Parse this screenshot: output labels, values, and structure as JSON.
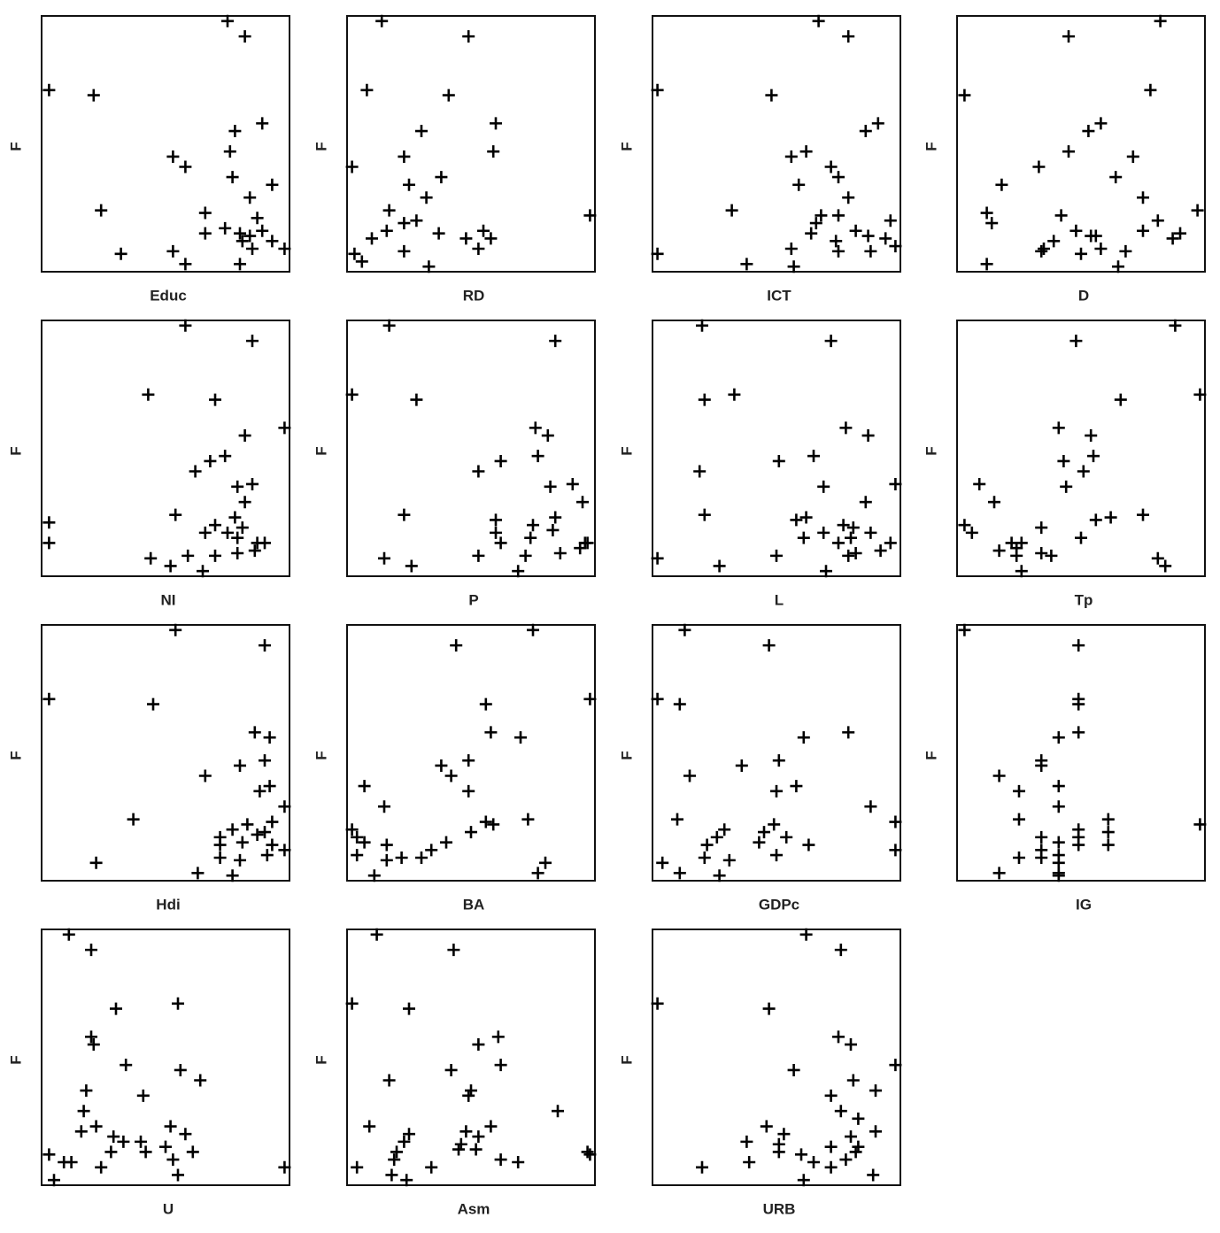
{
  "chart_data": [
    {
      "type": "scatter",
      "x_label": "Educ",
      "y_label": "F",
      "xlim": [
        0,
        1
      ],
      "ylim": [
        0,
        1
      ],
      "color": "#000000",
      "marker": "+",
      "x": [
        0.75,
        0.82,
        0.03,
        0.21,
        0.89,
        0.78,
        0.53,
        0.76,
        0.58,
        0.77,
        0.93,
        0.84,
        0.24,
        0.66,
        0.87,
        0.74,
        0.66,
        0.8,
        0.84,
        0.89,
        0.81,
        0.85,
        0.93,
        0.98,
        0.32,
        0.53,
        0.58,
        0.8
      ],
      "values": [
        0.98,
        0.92,
        0.71,
        0.69,
        0.58,
        0.55,
        0.45,
        0.47,
        0.41,
        0.37,
        0.34,
        0.29,
        0.24,
        0.23,
        0.21,
        0.17,
        0.15,
        0.15,
        0.14,
        0.16,
        0.12,
        0.09,
        0.12,
        0.09,
        0.07,
        0.08,
        0.03,
        0.03
      ]
    },
    {
      "type": "scatter",
      "x_label": "RD",
      "y_label": "F",
      "xlim": [
        0,
        1
      ],
      "ylim": [
        0,
        1
      ],
      "color": "#000000",
      "marker": "+",
      "x": [
        0.14,
        0.49,
        0.08,
        0.41,
        0.6,
        0.3,
        0.59,
        0.02,
        0.23,
        0.25,
        0.38,
        0.32,
        0.17,
        0.28,
        0.23,
        0.98,
        0.16,
        0.1,
        0.37,
        0.48,
        0.55,
        0.58,
        0.53,
        0.23,
        0.03,
        0.06,
        0.33
      ],
      "values": [
        0.98,
        0.92,
        0.71,
        0.69,
        0.58,
        0.55,
        0.47,
        0.41,
        0.45,
        0.34,
        0.37,
        0.29,
        0.24,
        0.2,
        0.19,
        0.22,
        0.16,
        0.13,
        0.15,
        0.13,
        0.16,
        0.13,
        0.09,
        0.08,
        0.07,
        0.04,
        0.02
      ]
    },
    {
      "type": "scatter",
      "x_label": "ICT",
      "y_label": "F",
      "xlim": [
        0,
        1
      ],
      "ylim": [
        0,
        1
      ],
      "color": "#000000",
      "marker": "+",
      "x": [
        0.67,
        0.79,
        0.02,
        0.48,
        0.91,
        0.86,
        0.56,
        0.62,
        0.72,
        0.75,
        0.59,
        0.79,
        0.32,
        0.68,
        0.75,
        0.96,
        0.66,
        0.82,
        0.64,
        0.87,
        0.94,
        0.74,
        0.56,
        0.75,
        0.88,
        0.98,
        0.02,
        0.38,
        0.57
      ],
      "values": [
        0.98,
        0.92,
        0.71,
        0.69,
        0.58,
        0.55,
        0.45,
        0.47,
        0.41,
        0.37,
        0.34,
        0.29,
        0.24,
        0.22,
        0.22,
        0.2,
        0.19,
        0.16,
        0.15,
        0.14,
        0.13,
        0.12,
        0.09,
        0.08,
        0.08,
        0.1,
        0.07,
        0.03,
        0.02
      ]
    },
    {
      "type": "scatter",
      "x_label": "D",
      "y_label": "F",
      "xlim": [
        0,
        1
      ],
      "ylim": [
        0,
        1
      ],
      "color": "#000000",
      "marker": "+",
      "x": [
        0.82,
        0.45,
        0.03,
        0.78,
        0.58,
        0.53,
        0.45,
        0.71,
        0.33,
        0.18,
        0.64,
        0.75,
        0.97,
        0.12,
        0.42,
        0.81,
        0.14,
        0.48,
        0.75,
        0.54,
        0.56,
        0.9,
        0.87,
        0.39,
        0.35,
        0.58,
        0.34,
        0.5,
        0.68,
        0.12,
        0.65
      ],
      "values": [
        0.98,
        0.92,
        0.69,
        0.71,
        0.58,
        0.55,
        0.47,
        0.45,
        0.41,
        0.34,
        0.37,
        0.29,
        0.24,
        0.23,
        0.22,
        0.2,
        0.19,
        0.16,
        0.16,
        0.14,
        0.14,
        0.15,
        0.13,
        0.12,
        0.09,
        0.09,
        0.08,
        0.07,
        0.08,
        0.03,
        0.02
      ]
    },
    {
      "type": "scatter",
      "x_label": "NI",
      "y_label": "F",
      "xlim": [
        0,
        1
      ],
      "ylim": [
        0,
        1
      ],
      "color": "#000000",
      "marker": "+",
      "x": [
        0.58,
        0.85,
        0.43,
        0.7,
        0.98,
        0.82,
        0.74,
        0.68,
        0.62,
        0.79,
        0.85,
        0.82,
        0.54,
        0.78,
        0.03,
        0.7,
        0.66,
        0.75,
        0.81,
        0.79,
        0.87,
        0.9,
        0.03,
        0.86,
        0.79,
        0.59,
        0.7,
        0.44,
        0.52,
        0.65
      ],
      "values": [
        0.98,
        0.92,
        0.71,
        0.69,
        0.58,
        0.55,
        0.47,
        0.45,
        0.41,
        0.35,
        0.36,
        0.29,
        0.24,
        0.23,
        0.21,
        0.2,
        0.17,
        0.17,
        0.19,
        0.15,
        0.13,
        0.13,
        0.13,
        0.1,
        0.09,
        0.08,
        0.08,
        0.07,
        0.04,
        0.02
      ]
    },
    {
      "type": "scatter",
      "x_label": "P",
      "y_label": "F",
      "xlim": [
        0,
        1
      ],
      "ylim": [
        0,
        1
      ],
      "color": "#000000",
      "marker": "+",
      "x": [
        0.17,
        0.84,
        0.02,
        0.28,
        0.76,
        0.81,
        0.77,
        0.62,
        0.53,
        0.91,
        0.82,
        0.95,
        0.23,
        0.6,
        0.84,
        0.75,
        0.6,
        0.83,
        0.74,
        0.62,
        0.96,
        0.94,
        0.97,
        0.53,
        0.72,
        0.86,
        0.15,
        0.26,
        0.69
      ],
      "values": [
        0.98,
        0.92,
        0.71,
        0.69,
        0.58,
        0.55,
        0.47,
        0.45,
        0.41,
        0.36,
        0.35,
        0.29,
        0.24,
        0.22,
        0.23,
        0.2,
        0.17,
        0.18,
        0.15,
        0.13,
        0.13,
        0.11,
        0.13,
        0.08,
        0.08,
        0.09,
        0.07,
        0.04,
        0.02
      ]
    },
    {
      "type": "scatter",
      "x_label": "L",
      "y_label": "F",
      "xlim": [
        0,
        1
      ],
      "ylim": [
        0,
        1
      ],
      "color": "#000000",
      "marker": "+",
      "x": [
        0.2,
        0.72,
        0.21,
        0.33,
        0.78,
        0.87,
        0.65,
        0.51,
        0.19,
        0.98,
        0.69,
        0.86,
        0.21,
        0.62,
        0.58,
        0.77,
        0.81,
        0.69,
        0.88,
        0.61,
        0.8,
        0.96,
        0.92,
        0.75,
        0.82,
        0.79,
        0.5,
        0.02,
        0.27,
        0.7
      ],
      "values": [
        0.98,
        0.92,
        0.69,
        0.71,
        0.58,
        0.55,
        0.47,
        0.45,
        0.41,
        0.36,
        0.35,
        0.29,
        0.24,
        0.23,
        0.22,
        0.2,
        0.19,
        0.17,
        0.17,
        0.15,
        0.15,
        0.13,
        0.1,
        0.13,
        0.09,
        0.08,
        0.08,
        0.07,
        0.04,
        0.02
      ]
    },
    {
      "type": "scatter",
      "x_label": "Tp",
      "y_label": "F",
      "xlim": [
        0,
        1
      ],
      "ylim": [
        0,
        1
      ],
      "color": "#000000",
      "marker": "+",
      "x": [
        0.88,
        0.48,
        0.98,
        0.66,
        0.41,
        0.54,
        0.55,
        0.43,
        0.51,
        0.09,
        0.44,
        0.15,
        0.75,
        0.62,
        0.56,
        0.03,
        0.34,
        0.06,
        0.5,
        0.22,
        0.26,
        0.17,
        0.24,
        0.34,
        0.38,
        0.24,
        0.81,
        0.84,
        0.26
      ],
      "values": [
        0.98,
        0.92,
        0.71,
        0.69,
        0.58,
        0.55,
        0.47,
        0.45,
        0.41,
        0.36,
        0.35,
        0.29,
        0.24,
        0.23,
        0.22,
        0.2,
        0.19,
        0.17,
        0.15,
        0.13,
        0.13,
        0.1,
        0.11,
        0.09,
        0.08,
        0.08,
        0.07,
        0.04,
        0.02
      ]
    },
    {
      "type": "scatter",
      "x_label": "Hdi",
      "y_label": "F",
      "xlim": [
        0,
        1
      ],
      "ylim": [
        0,
        1
      ],
      "color": "#000000",
      "marker": "+",
      "x": [
        0.54,
        0.9,
        0.03,
        0.45,
        0.86,
        0.92,
        0.9,
        0.8,
        0.66,
        0.92,
        0.88,
        0.98,
        0.37,
        0.93,
        0.77,
        0.83,
        0.72,
        0.87,
        0.9,
        0.81,
        0.72,
        0.93,
        0.98,
        0.91,
        0.72,
        0.8,
        0.22,
        0.63,
        0.77
      ],
      "values": [
        0.98,
        0.92,
        0.71,
        0.69,
        0.58,
        0.56,
        0.47,
        0.45,
        0.41,
        0.37,
        0.35,
        0.29,
        0.24,
        0.23,
        0.2,
        0.22,
        0.17,
        0.18,
        0.19,
        0.15,
        0.14,
        0.14,
        0.12,
        0.1,
        0.09,
        0.08,
        0.07,
        0.03,
        0.02
      ]
    },
    {
      "type": "scatter",
      "x_label": "BA",
      "y_label": "F",
      "xlim": [
        0,
        1
      ],
      "ylim": [
        0,
        1
      ],
      "color": "#000000",
      "marker": "+",
      "x": [
        0.75,
        0.44,
        0.98,
        0.56,
        0.58,
        0.7,
        0.49,
        0.38,
        0.42,
        0.07,
        0.49,
        0.15,
        0.73,
        0.56,
        0.59,
        0.02,
        0.5,
        0.04,
        0.07,
        0.4,
        0.16,
        0.34,
        0.04,
        0.22,
        0.16,
        0.3,
        0.8,
        0.77,
        0.11
      ],
      "values": [
        0.98,
        0.92,
        0.71,
        0.69,
        0.58,
        0.56,
        0.47,
        0.45,
        0.41,
        0.37,
        0.35,
        0.29,
        0.24,
        0.23,
        0.22,
        0.2,
        0.19,
        0.17,
        0.15,
        0.15,
        0.14,
        0.12,
        0.1,
        0.09,
        0.08,
        0.09,
        0.07,
        0.03,
        0.02
      ]
    },
    {
      "type": "scatter",
      "x_label": "GDPc",
      "y_label": "F",
      "xlim": [
        0,
        1
      ],
      "ylim": [
        0,
        1
      ],
      "color": "#000000",
      "marker": "+",
      "x": [
        0.13,
        0.47,
        0.02,
        0.11,
        0.79,
        0.61,
        0.51,
        0.36,
        0.15,
        0.58,
        0.5,
        0.88,
        0.1,
        0.98,
        0.49,
        0.29,
        0.45,
        0.26,
        0.54,
        0.43,
        0.22,
        0.63,
        0.98,
        0.5,
        0.21,
        0.31,
        0.04,
        0.11,
        0.27
      ],
      "values": [
        0.98,
        0.92,
        0.71,
        0.69,
        0.58,
        0.56,
        0.47,
        0.45,
        0.41,
        0.37,
        0.35,
        0.29,
        0.24,
        0.23,
        0.22,
        0.2,
        0.19,
        0.17,
        0.17,
        0.15,
        0.14,
        0.14,
        0.12,
        0.1,
        0.09,
        0.08,
        0.07,
        0.03,
        0.02
      ]
    },
    {
      "type": "scatter",
      "x_label": "IG",
      "y_label": "F",
      "xlim": [
        0,
        1
      ],
      "ylim": [
        0,
        1
      ],
      "color": "#000000",
      "marker": "+",
      "x": [
        0.03,
        0.49,
        0.49,
        0.49,
        0.49,
        0.41,
        0.34,
        0.34,
        0.17,
        0.41,
        0.25,
        0.41,
        0.25,
        0.61,
        0.98,
        0.49,
        0.61,
        0.34,
        0.49,
        0.41,
        0.49,
        0.61,
        0.34,
        0.41,
        0.25,
        0.34,
        0.41,
        0.41,
        0.17,
        0.41
      ],
      "values": [
        0.98,
        0.92,
        0.71,
        0.69,
        0.58,
        0.56,
        0.47,
        0.45,
        0.41,
        0.37,
        0.35,
        0.29,
        0.24,
        0.24,
        0.22,
        0.2,
        0.19,
        0.17,
        0.17,
        0.15,
        0.14,
        0.14,
        0.12,
        0.1,
        0.09,
        0.09,
        0.07,
        0.03,
        0.03,
        0.02
      ]
    },
    {
      "type": "scatter",
      "x_label": "U",
      "y_label": "F",
      "xlim": [
        0,
        1
      ],
      "ylim": [
        0,
        1
      ],
      "color": "#000000",
      "marker": "+",
      "x": [
        0.11,
        0.2,
        0.3,
        0.55,
        0.2,
        0.21,
        0.34,
        0.56,
        0.64,
        0.18,
        0.41,
        0.17,
        0.16,
        0.22,
        0.52,
        0.58,
        0.29,
        0.33,
        0.4,
        0.5,
        0.28,
        0.42,
        0.61,
        0.03,
        0.53,
        0.09,
        0.12,
        0.24,
        0.98,
        0.55,
        0.05
      ],
      "values": [
        0.98,
        0.92,
        0.69,
        0.71,
        0.58,
        0.55,
        0.47,
        0.45,
        0.41,
        0.37,
        0.35,
        0.29,
        0.21,
        0.23,
        0.23,
        0.2,
        0.19,
        0.17,
        0.17,
        0.15,
        0.13,
        0.13,
        0.13,
        0.12,
        0.1,
        0.09,
        0.09,
        0.07,
        0.07,
        0.04,
        0.02
      ]
    },
    {
      "type": "scatter",
      "x_label": "Asm",
      "y_label": "F",
      "xlim": [
        0,
        1
      ],
      "ylim": [
        0,
        1
      ],
      "color": "#000000",
      "marker": "+",
      "x": [
        0.12,
        0.43,
        0.02,
        0.25,
        0.61,
        0.53,
        0.62,
        0.42,
        0.17,
        0.5,
        0.49,
        0.85,
        0.09,
        0.58,
        0.48,
        0.25,
        0.53,
        0.23,
        0.46,
        0.52,
        0.45,
        0.2,
        0.97,
        0.98,
        0.62,
        0.69,
        0.19,
        0.34,
        0.04,
        0.18,
        0.24
      ],
      "values": [
        0.98,
        0.92,
        0.71,
        0.69,
        0.58,
        0.55,
        0.47,
        0.45,
        0.41,
        0.37,
        0.35,
        0.29,
        0.23,
        0.23,
        0.21,
        0.2,
        0.19,
        0.17,
        0.16,
        0.14,
        0.14,
        0.13,
        0.13,
        0.12,
        0.1,
        0.09,
        0.1,
        0.07,
        0.07,
        0.04,
        0.02
      ]
    },
    {
      "type": "scatter",
      "x_label": "URB",
      "y_label": "F",
      "xlim": [
        0,
        1
      ],
      "ylim": [
        0,
        1
      ],
      "color": "#000000",
      "marker": "+",
      "x": [
        0.62,
        0.76,
        0.02,
        0.47,
        0.75,
        0.8,
        0.98,
        0.57,
        0.81,
        0.9,
        0.72,
        0.76,
        0.83,
        0.46,
        0.9,
        0.53,
        0.8,
        0.38,
        0.51,
        0.51,
        0.83,
        0.82,
        0.72,
        0.6,
        0.78,
        0.65,
        0.72,
        0.39,
        0.2,
        0.89,
        0.61
      ],
      "values": [
        0.98,
        0.92,
        0.71,
        0.69,
        0.58,
        0.55,
        0.47,
        0.45,
        0.41,
        0.37,
        0.35,
        0.29,
        0.26,
        0.23,
        0.21,
        0.2,
        0.19,
        0.17,
        0.16,
        0.13,
        0.15,
        0.13,
        0.15,
        0.12,
        0.1,
        0.09,
        0.07,
        0.09,
        0.07,
        0.04,
        0.02
      ]
    }
  ]
}
